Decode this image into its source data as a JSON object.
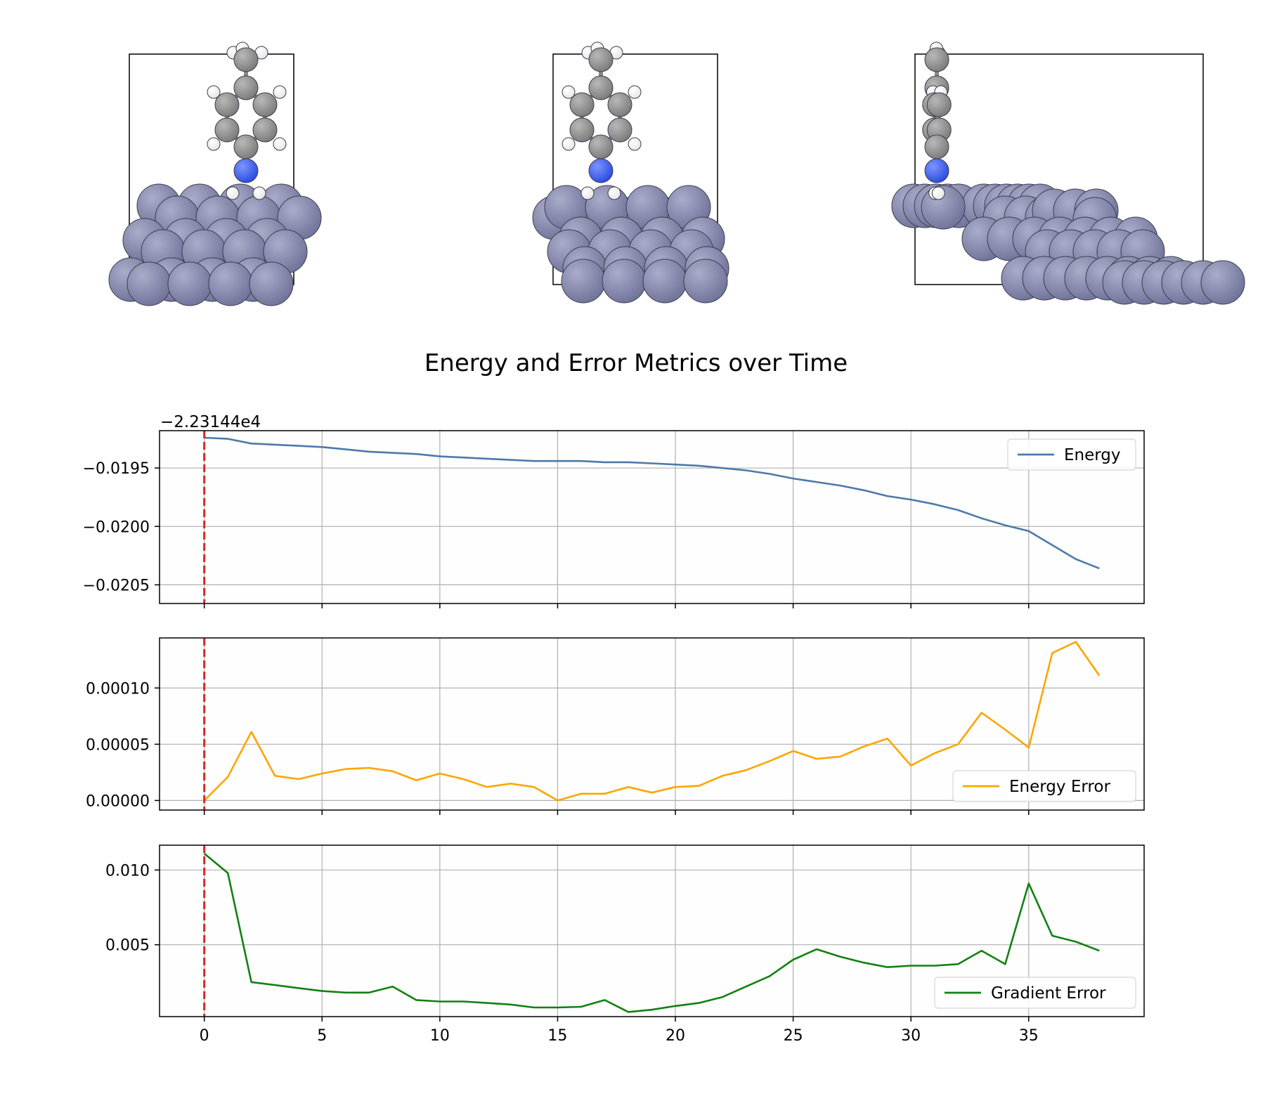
{
  "colors": {
    "slab_atom": "#72759b",
    "carbon": "#7c7c7c",
    "hydrogen": "#e6e6e6",
    "nitrogen": "#2b4de0",
    "energy": "#4d7aa8",
    "energy_error": "#ffa500",
    "gradient_error": "#138013",
    "marker": "#d62728",
    "grid": "#b0b0b0"
  },
  "chart_data": [
    {
      "type": "line",
      "title": "Energy and Error Metrics over Time",
      "offset_text": "−2.23144e4",
      "legend": "upper right",
      "grid": true,
      "xlim": [
        -1.9,
        39.9
      ],
      "ylim": [
        -0.02066,
        -0.01918
      ],
      "y_ticks": [
        -0.0195,
        -0.02,
        -0.0205
      ],
      "y_tick_labels": [
        "−0.0195",
        "−0.0200",
        "−0.0205"
      ],
      "x_ticks": [
        0,
        5,
        10,
        15,
        20,
        25,
        30,
        35
      ],
      "vline_x": 0,
      "series": [
        {
          "name": "Energy",
          "color": "#4d7aa8",
          "x": [
            0,
            1,
            2,
            3,
            4,
            5,
            6,
            7,
            8,
            9,
            10,
            11,
            12,
            13,
            14,
            15,
            16,
            17,
            18,
            19,
            20,
            21,
            22,
            23,
            24,
            25,
            26,
            27,
            28,
            29,
            30,
            31,
            32,
            33,
            34,
            35,
            36,
            37,
            38
          ],
          "values": [
            -0.01924,
            -0.01925,
            -0.01929,
            -0.0193,
            -0.01931,
            -0.01932,
            -0.01934,
            -0.01936,
            -0.01937,
            -0.01938,
            -0.0194,
            -0.01941,
            -0.01942,
            -0.01943,
            -0.01944,
            -0.01944,
            -0.01944,
            -0.01945,
            -0.01945,
            -0.01946,
            -0.01947,
            -0.01948,
            -0.0195,
            -0.01952,
            -0.01955,
            -0.01959,
            -0.01962,
            -0.01965,
            -0.01969,
            -0.01974,
            -0.01977,
            -0.01981,
            -0.01986,
            -0.01993,
            -0.01999,
            -0.02004,
            -0.02016,
            -0.02028,
            -0.02036
          ]
        }
      ]
    },
    {
      "type": "line",
      "legend": "lower right",
      "grid": true,
      "xlim": [
        -1.9,
        39.9
      ],
      "ylim": [
        -8.5e-06,
        0.0001445
      ],
      "y_ticks": [
        0.0,
        5e-05,
        0.0001
      ],
      "y_tick_labels": [
        "0.00000",
        "0.00005",
        "0.00010"
      ],
      "x_ticks": [
        0,
        5,
        10,
        15,
        20,
        25,
        30,
        35
      ],
      "vline_x": 0,
      "series": [
        {
          "name": "Energy Error",
          "color": "#ffa500",
          "x": [
            0,
            1,
            2,
            3,
            4,
            5,
            6,
            7,
            8,
            9,
            10,
            11,
            12,
            13,
            14,
            15,
            16,
            17,
            18,
            19,
            20,
            21,
            22,
            23,
            24,
            25,
            26,
            27,
            28,
            29,
            30,
            31,
            32,
            33,
            34,
            35,
            36,
            37,
            38
          ],
          "values": [
            0.0,
            2.1e-05,
            6.1e-05,
            2.2e-05,
            1.9e-05,
            2.4e-05,
            2.8e-05,
            2.9e-05,
            2.6e-05,
            1.8e-05,
            2.4e-05,
            1.9e-05,
            1.2e-05,
            1.5e-05,
            1.2e-05,
            0.0,
            6e-06,
            6e-06,
            1.2e-05,
            7e-06,
            1.2e-05,
            1.3e-05,
            2.2e-05,
            2.7e-05,
            3.5e-05,
            4.4e-05,
            3.7e-05,
            3.9e-05,
            4.8e-05,
            5.5e-05,
            3.1e-05,
            4.2e-05,
            5e-05,
            7.8e-05,
            6.3e-05,
            4.7e-05,
            0.000131,
            0.000141,
            0.000111
          ]
        }
      ]
    },
    {
      "type": "line",
      "legend": "lower right",
      "grid": true,
      "xlim": [
        -1.9,
        39.9
      ],
      "ylim": [
        0.00019,
        0.01166
      ],
      "y_ticks": [
        0.005,
        0.01
      ],
      "y_tick_labels": [
        "0.005",
        "0.010"
      ],
      "x_ticks": [
        0,
        5,
        10,
        15,
        20,
        25,
        30,
        35
      ],
      "x_tick_labels": [
        "0",
        "5",
        "10",
        "15",
        "20",
        "25",
        "30",
        "35"
      ],
      "vline_x": 0,
      "series": [
        {
          "name": "Gradient Error",
          "color": "#138013",
          "x": [
            0,
            1,
            2,
            3,
            4,
            5,
            6,
            7,
            8,
            9,
            10,
            11,
            12,
            13,
            14,
            15,
            16,
            17,
            18,
            19,
            20,
            21,
            22,
            23,
            24,
            25,
            26,
            27,
            28,
            29,
            30,
            31,
            32,
            33,
            34,
            35,
            36,
            37,
            38
          ],
          "values": [
            0.0111,
            0.0098,
            0.0025,
            0.0023,
            0.0021,
            0.0019,
            0.0018,
            0.0018,
            0.0022,
            0.0013,
            0.0012,
            0.0012,
            0.0011,
            0.001,
            0.0008,
            0.0008,
            0.00085,
            0.0013,
            0.0005,
            0.00065,
            0.0009,
            0.0011,
            0.0015,
            0.0022,
            0.0029,
            0.004,
            0.0047,
            0.0042,
            0.0038,
            0.0035,
            0.0036,
            0.0036,
            0.0037,
            0.0046,
            0.0037,
            0.0091,
            0.0056,
            0.0052,
            0.0046
          ]
        }
      ]
    }
  ]
}
